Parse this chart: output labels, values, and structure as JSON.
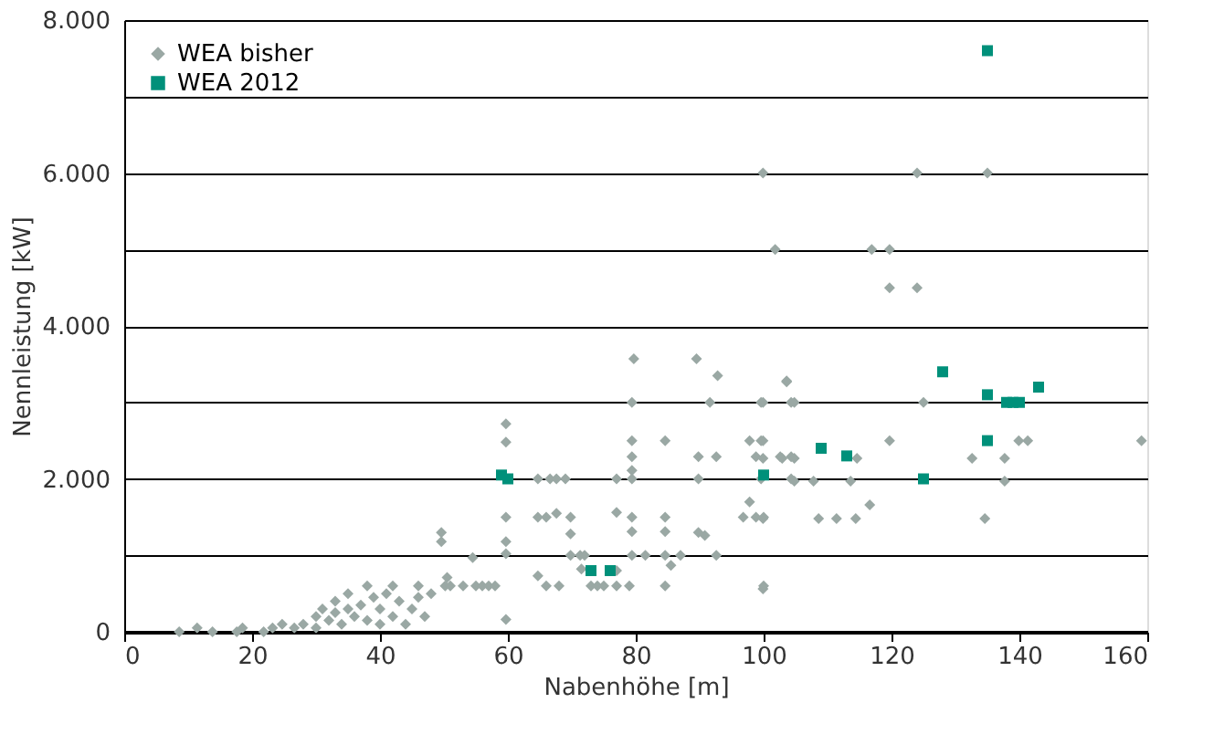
{
  "chart_data": {
    "type": "scatter",
    "xlabel": "Nabenhöhe [m]",
    "ylabel": "Nennleistung [kW]",
    "xlim": [
      0,
      160
    ],
    "xticks": [
      0,
      20,
      40,
      60,
      80,
      100,
      120,
      140,
      160
    ],
    "ylim": [
      0,
      8000
    ],
    "yticks": [
      0,
      {
        "value": 1000,
        "label": null
      },
      {
        "value": 2000,
        "label": "2.000"
      },
      {
        "value": 3000,
        "label": null
      },
      {
        "value": 4000,
        "label": "4.000"
      },
      {
        "value": 5000,
        "label": null
      },
      {
        "value": 6000,
        "label": "6.000"
      },
      {
        "value": 7000,
        "label": null
      },
      {
        "value": 8000,
        "label": "8.000"
      }
    ],
    "grid": "y",
    "legend": "top left",
    "series": [
      {
        "name": "WEA bisher",
        "color": "#9aa8a4",
        "marker": "diamond",
        "x": [
          8.6,
          11.4,
          13.8,
          17.6,
          18.5,
          21.8,
          23.2,
          24.7,
          26.6,
          28,
          30,
          30,
          31,
          32,
          33,
          33,
          34,
          35,
          35,
          36,
          37,
          38,
          38,
          39,
          40,
          40,
          41,
          42,
          42,
          43,
          44,
          45,
          46,
          46,
          47,
          48,
          49.6,
          49.6,
          50.5,
          50.2,
          51,
          53,
          54.5,
          55,
          56,
          57,
          58,
          59.7,
          59.7,
          59.7,
          59.7,
          59.7,
          59.7,
          64.7,
          64.7,
          64.7,
          66,
          66,
          66.6,
          67.6,
          67.6,
          68,
          69,
          69.8,
          69.8,
          69.8,
          71.3,
          71.5,
          72,
          73,
          74,
          75,
          77,
          77,
          77,
          77,
          79,
          79.4,
          79.4,
          79.4,
          79.4,
          79.4,
          79.4,
          79.4,
          79.4,
          79.7,
          81.5,
          84.6,
          84.6,
          84.6,
          84.6,
          84.6,
          85.5,
          87,
          89.5,
          89.8,
          89.8,
          89.8,
          90.8,
          91.6,
          92.6,
          92.6,
          92.8,
          96.8,
          97.8,
          97.8,
          98.8,
          98.8,
          99.6,
          99.6,
          99.6,
          99.9,
          99.9,
          99.9,
          99.9,
          99.9,
          99.9,
          100,
          100,
          101.8,
          102.6,
          102.9,
          103.6,
          103.6,
          104.3,
          104.3,
          104.3,
          104.8,
          104.8,
          104.8,
          107.8,
          108.6,
          111.4,
          113.6,
          114.4,
          114.6,
          116.6,
          116.9,
          119.7,
          119.7,
          119.7,
          124,
          124,
          125,
          132.6,
          134.6,
          135,
          137.7,
          137.7,
          139.9,
          141.3,
          159.1
        ],
        "values": [
          0,
          50,
          0,
          0,
          50,
          0,
          50,
          100,
          50,
          100,
          200,
          50,
          300,
          150,
          250,
          400,
          100,
          300,
          500,
          200,
          350,
          150,
          600,
          450,
          300,
          100,
          500,
          600,
          200,
          400,
          100,
          300,
          600,
          450,
          200,
          500,
          1300,
          1180,
          710,
          600,
          600,
          600,
          970,
          600,
          600,
          600,
          600,
          2720,
          2480,
          1500,
          1180,
          1020,
          160,
          2000,
          1500,
          730,
          1500,
          600,
          2000,
          2000,
          1550,
          600,
          2000,
          1500,
          1280,
          1000,
          1000,
          820,
          1000,
          600,
          600,
          600,
          1560,
          2000,
          800,
          600,
          600,
          3000,
          2500,
          2290,
          2110,
          2000,
          1500,
          1310,
          1000,
          3570,
          1000,
          2500,
          1500,
          1310,
          1000,
          600,
          870,
          1000,
          3570,
          2290,
          2000,
          1300,
          1260,
          3000,
          2290,
          1000,
          3350,
          1500,
          2500,
          1700,
          2290,
          1500,
          3000,
          2500,
          2000,
          6000,
          3000,
          2500,
          2270,
          1480,
          560,
          1500,
          600,
          5000,
          2290,
          2270,
          3280,
          3270,
          3000,
          2290,
          2000,
          3000,
          2270,
          1970,
          1970,
          1480,
          1480,
          1970,
          1480,
          2270,
          1660,
          5000,
          5000,
          4500,
          2500,
          6000,
          4500,
          3000,
          2270,
          1480,
          6000,
          2270,
          1970,
          2500,
          2500,
          2500
        ]
      },
      {
        "name": "WEA 2012",
        "color": "#00907a",
        "marker": "square",
        "x": [
          59,
          60,
          73,
          76,
          100,
          109,
          113,
          125,
          128,
          135,
          135,
          135,
          138,
          139,
          140,
          143
        ],
        "values": [
          2050,
          2000,
          800,
          800,
          2050,
          2400,
          2300,
          2000,
          3400,
          7600,
          3100,
          2500,
          3000,
          3000,
          3000,
          3200
        ]
      }
    ]
  }
}
